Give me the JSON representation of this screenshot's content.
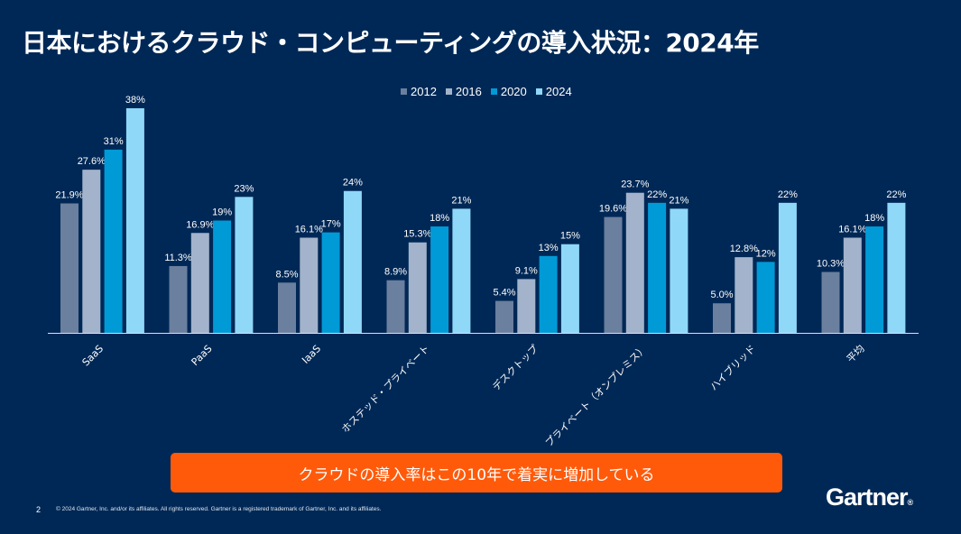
{
  "title": "日本におけるクラウド・コンピューティングの導入状況：2024年",
  "callout": "クラウドの導入率はこの10年で着実に増加している",
  "footer": {
    "page_number": "2",
    "copyright": "© 2024 Gartner, Inc. and/or its affiliates. All rights reserved. Gartner is a registered trademark of Gartner, Inc. and its affiliates.",
    "logo": "Gartner",
    "logo_dot": "®"
  },
  "colors": {
    "background": "#002856",
    "callout": "#FF5A0A",
    "axis": "#d9e2ec"
  },
  "chart_data": {
    "type": "bar",
    "title": "",
    "xlabel": "",
    "ylabel": "",
    "ylim": [
      0,
      38
    ],
    "grid": false,
    "legend_position": "top-center",
    "categories": [
      "SaaS",
      "PaaS",
      "IaaS",
      "ホステッド・プライベート",
      "デスクトップ",
      "プライベート（オンプレミス）",
      "ハイブリッド",
      "平均"
    ],
    "series": [
      {
        "name": "2012",
        "color": "#6B7F9E",
        "values": [
          21.9,
          11.3,
          8.5,
          8.9,
          5.4,
          19.6,
          5.0,
          10.3
        ],
        "labels": [
          "21.9%",
          "11.3%",
          "8.5%",
          "8.9%",
          "5.4%",
          "19.6%",
          "5.0%",
          "10.3%"
        ]
      },
      {
        "name": "2016",
        "color": "#A3B3CB",
        "values": [
          27.6,
          16.9,
          16.1,
          15.3,
          9.1,
          23.7,
          12.8,
          16.1
        ],
        "labels": [
          "27.6%",
          "16.9%",
          "16.1%",
          "15.3%",
          "9.1%",
          "23.7%",
          "12.8%",
          "16.1%"
        ]
      },
      {
        "name": "2020",
        "color": "#009AD7",
        "values": [
          31,
          19,
          17,
          18,
          13,
          22,
          12,
          18
        ],
        "labels": [
          "31%",
          "19%",
          "17%",
          "18%",
          "13%",
          "22%",
          "12%",
          "18%"
        ]
      },
      {
        "name": "2024",
        "color": "#8FD8F8",
        "values": [
          38,
          23,
          24,
          21,
          15,
          21,
          22,
          22
        ],
        "labels": [
          "38%",
          "23%",
          "24%",
          "21%",
          "15%",
          "21%",
          "22%",
          "22%"
        ]
      }
    ]
  }
}
